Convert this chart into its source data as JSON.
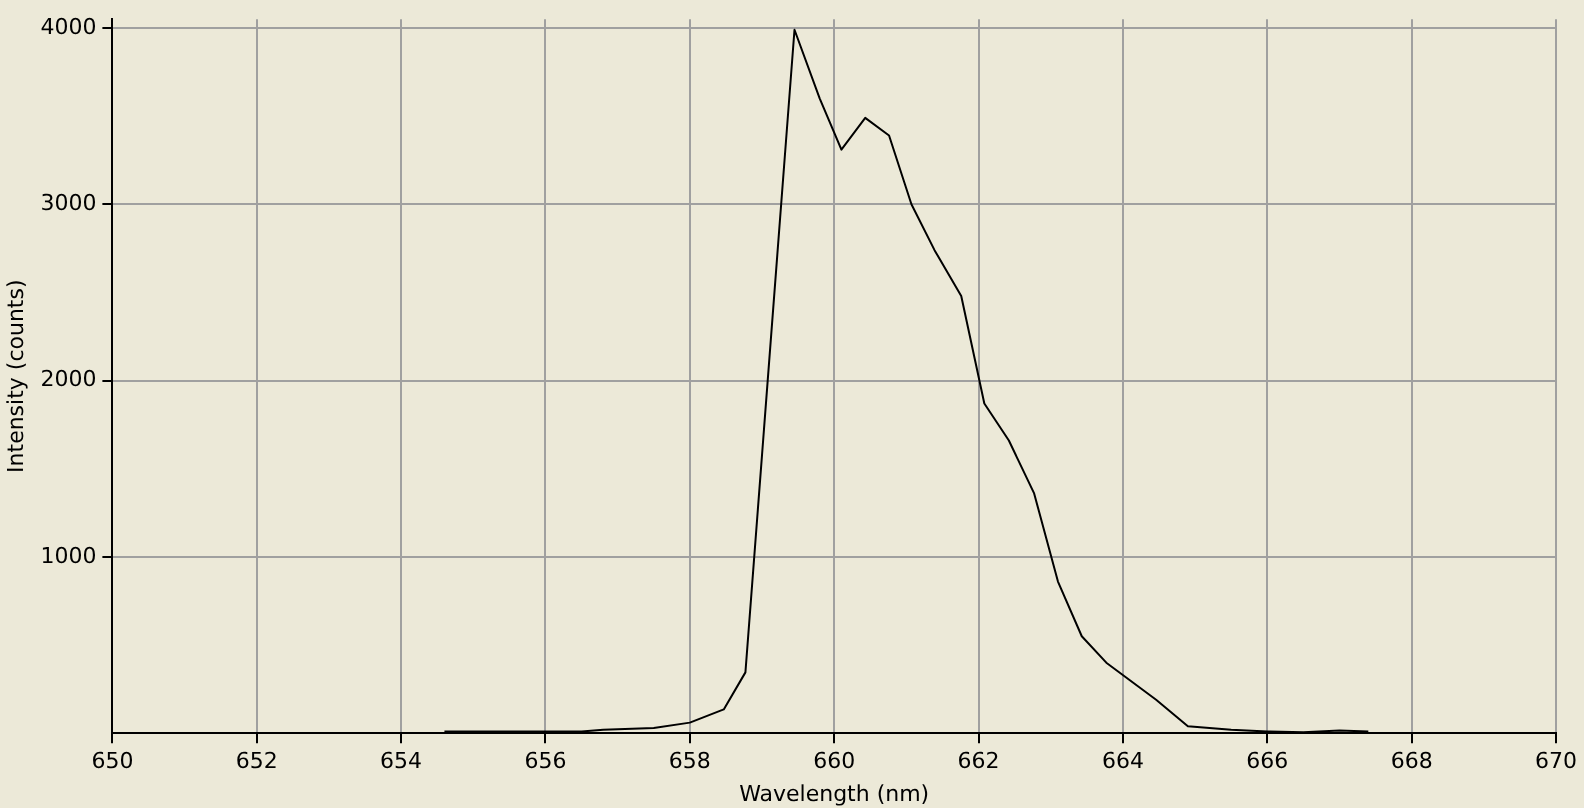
{
  "chart_data": {
    "type": "line",
    "xlabel": "Wavelength (nm)",
    "ylabel": "Intensity (counts)",
    "series": [
      {
        "color": "#000000",
        "x": [
          654.6,
          655.5,
          656.5,
          656.8,
          657.5,
          658.0,
          658.47,
          658.77,
          659.45,
          659.8,
          660.1,
          660.43,
          660.76,
          661.07,
          661.39,
          661.76,
          662.08,
          662.42,
          662.77,
          663.1,
          663.43,
          663.77,
          664.46,
          664.9,
          665.5,
          666.0,
          666.5,
          667.0,
          667.4
        ],
        "values": [
          10,
          10,
          10,
          20,
          30,
          60,
          135,
          345,
          3990,
          3600,
          3310,
          3490,
          3390,
          3000,
          2740,
          2480,
          1870,
          1660,
          1360,
          860,
          550,
          400,
          190,
          40,
          20,
          10,
          5,
          15,
          10
        ]
      }
    ],
    "xlim": [
      650,
      670
    ],
    "xticks": [
      650,
      652,
      654,
      656,
      658,
      660,
      662,
      664,
      666,
      668,
      670
    ],
    "ylim": [
      0,
      4050
    ],
    "yticks": [
      1000,
      2000,
      3000,
      4000
    ],
    "grid": true,
    "legend": false,
    "marker": "none",
    "line_style": "solid"
  }
}
